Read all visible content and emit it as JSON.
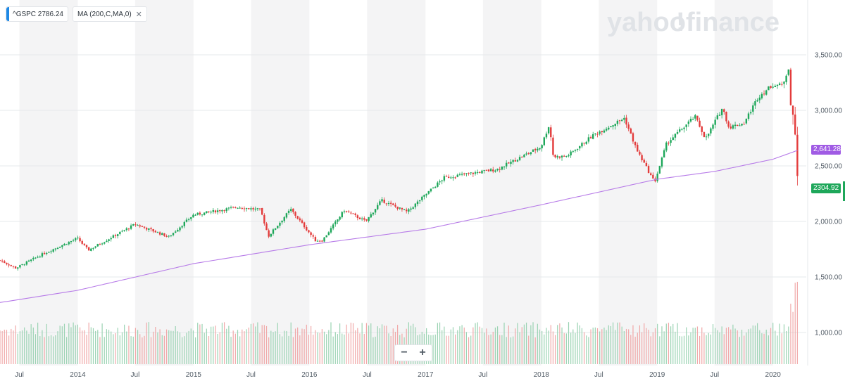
{
  "watermark": {
    "yahoo": "yahoo",
    "slash": "!",
    "finance": "finance"
  },
  "legend": {
    "ticker": "^GSPC 2786.24",
    "ma": "MA (200,C,MA,0)",
    "close_glyph": "✕"
  },
  "zoom": {
    "minus": "−",
    "plus": "+"
  },
  "tags": {
    "ma_value": "2,641.28",
    "last_value": "2304.92"
  },
  "colors": {
    "up": "#1ea75a",
    "down": "#e33b3b",
    "ma": "#b77be8",
    "ma_tag": "#a05be4",
    "accent": "#1e88e5"
  },
  "chart_data": {
    "type": "candlestick",
    "series": [
      {
        "name": "^GSPC",
        "kind": "ohlc-weekly"
      },
      {
        "name": "MA (200,C,MA,0)",
        "kind": "line"
      }
    ],
    "y_ticks": [
      "3,500.00",
      "3,000.00",
      "2,500.00",
      "2,000.00",
      "1,500.00",
      "1,000.00"
    ],
    "y_tick_values": [
      3500,
      3000,
      2500,
      2000,
      1500,
      1000
    ],
    "ylim": [
      750,
      3950
    ],
    "x_ticks": [
      "Jul",
      "2014",
      "Jul",
      "2015",
      "Jul",
      "2016",
      "Jul",
      "2017",
      "Jul",
      "2018",
      "Jul",
      "2019",
      "Jul",
      "2020"
    ],
    "x_tick_dates": [
      "2013-07-01",
      "2014-01-01",
      "2014-07-01",
      "2015-01-01",
      "2015-07-01",
      "2016-01-01",
      "2016-07-01",
      "2017-01-01",
      "2017-07-01",
      "2018-01-01",
      "2018-07-01",
      "2019-01-01",
      "2019-07-01",
      "2020-01-01"
    ],
    "xlim": [
      "2013-05-01",
      "2020-04-15"
    ],
    "price_anchors": [
      [
        "2013-05-01",
        1650
      ],
      [
        "2013-06-20",
        1580
      ],
      [
        "2013-09-15",
        1710
      ],
      [
        "2013-12-31",
        1848
      ],
      [
        "2014-02-03",
        1741
      ],
      [
        "2014-07-01",
        1975
      ],
      [
        "2014-10-15",
        1862
      ],
      [
        "2014-12-31",
        2058
      ],
      [
        "2015-05-20",
        2130
      ],
      [
        "2015-07-31",
        2104
      ],
      [
        "2015-08-25",
        1867
      ],
      [
        "2015-11-03",
        2109
      ],
      [
        "2016-01-20",
        1829
      ],
      [
        "2016-02-11",
        1829
      ],
      [
        "2016-04-20",
        2100
      ],
      [
        "2016-06-27",
        2000
      ],
      [
        "2016-08-15",
        2190
      ],
      [
        "2016-11-04",
        2085
      ],
      [
        "2016-12-31",
        2238
      ],
      [
        "2017-03-01",
        2395
      ],
      [
        "2017-08-15",
        2470
      ],
      [
        "2017-12-31",
        2673
      ],
      [
        "2018-01-26",
        2872
      ],
      [
        "2018-02-08",
        2581
      ],
      [
        "2018-03-23",
        2588
      ],
      [
        "2018-06-15",
        2780
      ],
      [
        "2018-09-20",
        2930
      ],
      [
        "2018-10-29",
        2641
      ],
      [
        "2018-12-24",
        2351
      ],
      [
        "2019-01-31",
        2704
      ],
      [
        "2019-04-30",
        2945
      ],
      [
        "2019-06-03",
        2744
      ],
      [
        "2019-07-26",
        3025
      ],
      [
        "2019-08-15",
        2847
      ],
      [
        "2019-10-02",
        2887
      ],
      [
        "2019-11-15",
        3120
      ],
      [
        "2019-12-31",
        3230
      ],
      [
        "2020-01-31",
        3225
      ],
      [
        "2020-02-19",
        3386
      ],
      [
        "2020-02-28",
        2954
      ],
      [
        "2020-03-06",
        2972
      ],
      [
        "2020-03-13",
        2711
      ],
      [
        "2020-03-20",
        2305
      ]
    ],
    "ma_anchors": [
      [
        "2013-05-01",
        1270
      ],
      [
        "2014-01-01",
        1380
      ],
      [
        "2015-01-01",
        1620
      ],
      [
        "2016-01-01",
        1790
      ],
      [
        "2017-01-01",
        1930
      ],
      [
        "2018-01-01",
        2150
      ],
      [
        "2019-01-01",
        2380
      ],
      [
        "2019-07-01",
        2450
      ],
      [
        "2020-01-01",
        2560
      ],
      [
        "2020-03-20",
        2641.28
      ]
    ],
    "last_close": 2304.92,
    "ma_last": 2641.28,
    "volume_note": "volume bars at chart bottom, spiking in March 2020"
  }
}
